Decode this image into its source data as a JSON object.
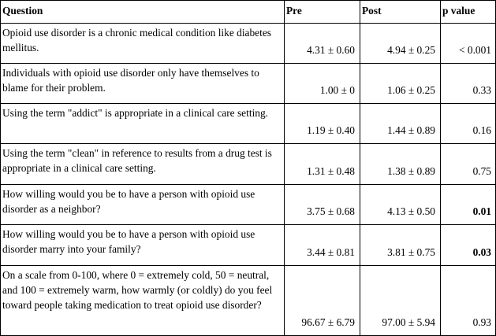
{
  "table": {
    "headers": {
      "question": "Question",
      "pre": "Pre",
      "post": "Post",
      "p_value": "p value"
    },
    "rows": [
      {
        "question": "Opioid use disorder is a chronic medical condition like diabetes mellitus.",
        "pre": "4.31 ± 0.60",
        "post": "4.94 ± 0.25",
        "p_value": "< 0.001",
        "significant_bold": false
      },
      {
        "question": "Individuals with opioid use disorder only have themselves to blame for their problem.",
        "pre": "1.00 ± 0",
        "post": "1.06 ± 0.25",
        "p_value": "0.33",
        "significant_bold": false
      },
      {
        "question": "Using the term \"addict\" is appropriate in a clinical care setting.",
        "pre": "1.19 ± 0.40",
        "post": "1.44 ± 0.89",
        "p_value": "0.16",
        "significant_bold": false
      },
      {
        "question": "Using the term \"clean\" in reference to results from a drug test is appropriate in a clinical care setting.",
        "pre": "1.31 ± 0.48",
        "post": "1.38 ± 0.89",
        "p_value": "0.75",
        "significant_bold": false
      },
      {
        "question": "How willing would you be to have a person with opioid use disorder as a neighbor?",
        "pre": "3.75 ± 0.68",
        "post": "4.13 ± 0.50",
        "p_value": "0.01",
        "significant_bold": true
      },
      {
        "question": "How willing would you be to have a person with opioid use disorder marry into your family?",
        "pre": "3.44 ± 0.81",
        "post": "3.81 ± 0.75",
        "p_value": "0.03",
        "significant_bold": true
      },
      {
        "question": "On a scale from 0-100, where 0 = extremely cold, 50 = neutral, and 100 = extremely warm, how warmly (or coldly) do you feel toward people taking medication to treat opioid use disorder?",
        "pre": "96.67 ± 6.79",
        "post": "97.00 ± 5.94",
        "p_value": "0.93",
        "significant_bold": false
      }
    ]
  }
}
